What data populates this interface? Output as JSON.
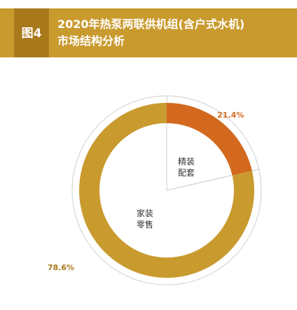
{
  "header": {
    "figure_label": "图4",
    "title_line1": "2020年热泵两联供机组(含户式水机)",
    "title_line2": "市场结构分析"
  },
  "colors": {
    "header_bg": "#c99a2e",
    "badge_bg": "#a87a1c",
    "series_retail": "#c99a2e",
    "series_fine": "#d2691e",
    "outer_ring": "#cfcfcf"
  },
  "chart_data": {
    "type": "pie",
    "style": "donut",
    "title": "2020年热泵两联供机组(含户式水机)市场结构分析",
    "slices": [
      {
        "label_line1": "精装",
        "label_line2": "配套",
        "value": 21.4,
        "value_label": "21.4%",
        "color": "#d2691e",
        "label_color": "#d2691e"
      },
      {
        "label_line1": "家装",
        "label_line2": "零售",
        "value": 78.6,
        "value_label": "78.6%",
        "color": "#c99a2e",
        "label_color": "#a87a1c"
      }
    ],
    "start_angle_deg": 0,
    "direction": "clockwise",
    "legend": "none"
  }
}
